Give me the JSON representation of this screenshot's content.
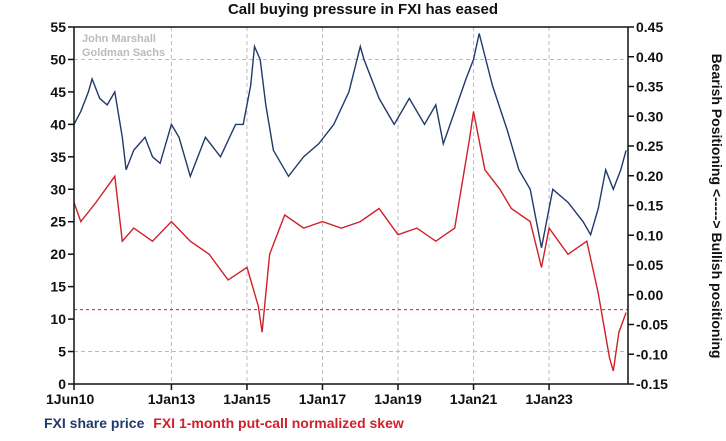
{
  "chart_data": {
    "type": "line",
    "title": "Call buying pressure in FXI has eased",
    "watermark": [
      "John Marshall",
      "Goldman Sachs"
    ],
    "left_axis": {
      "ylim": [
        0,
        55
      ],
      "ticks": [
        0,
        5,
        10,
        15,
        20,
        25,
        30,
        35,
        40,
        45,
        50,
        55
      ]
    },
    "right_axis": {
      "label": "Bearish Positioning <-----> Bullish positioning",
      "ylim": [
        -0.15,
        0.45
      ],
      "ticks": [
        "-0.15",
        "-0.10",
        "-0.05",
        "0.00",
        "0.05",
        "0.10",
        "0.15",
        "0.20",
        "0.25",
        "0.30",
        "0.35",
        "0.40",
        "0.45"
      ]
    },
    "x_axis": {
      "xlim": [
        2010.42,
        2025.09
      ],
      "ticks": [
        {
          "x": 2010.42,
          "label": "1Jun10"
        },
        {
          "x": 2013,
          "label": "1Jan13"
        },
        {
          "x": 2015,
          "label": "1Jan15"
        },
        {
          "x": 2017,
          "label": "1Jan17"
        },
        {
          "x": 2019,
          "label": "1Jan19"
        },
        {
          "x": 2021,
          "label": "1Jan21"
        },
        {
          "x": 2023,
          "label": "1Jan23"
        }
      ]
    },
    "reference_line": {
      "right_value": -0.025,
      "color": "#d0202a"
    },
    "series": [
      {
        "name": "FXI share price",
        "axis": "left",
        "color": "#1f3a6b",
        "x": [
          2010.42,
          2010.6,
          2010.8,
          2010.9,
          2011.1,
          2011.3,
          2011.5,
          2011.7,
          2011.8,
          2012.0,
          2012.3,
          2012.5,
          2012.7,
          2013.0,
          2013.2,
          2013.5,
          2013.9,
          2014.3,
          2014.7,
          2014.9,
          2015.1,
          2015.2,
          2015.35,
          2015.5,
          2015.7,
          2016.1,
          2016.5,
          2016.9,
          2017.3,
          2017.7,
          2018.0,
          2018.1,
          2018.5,
          2018.9,
          2019.3,
          2019.7,
          2020.0,
          2020.2,
          2020.5,
          2020.8,
          2021.0,
          2021.15,
          2021.5,
          2021.9,
          2022.2,
          2022.5,
          2022.8,
          2023.1,
          2023.5,
          2023.9,
          2024.1,
          2024.3,
          2024.5,
          2024.7,
          2024.9,
          2025.04
        ],
        "values": [
          40,
          42,
          45,
          47,
          44,
          43,
          45,
          38,
          33,
          36,
          38,
          35,
          34,
          40,
          38,
          32,
          38,
          35,
          40,
          40,
          46,
          52,
          50,
          43,
          36,
          32,
          35,
          37,
          40,
          45,
          52,
          50,
          44,
          40,
          44,
          40,
          43,
          37,
          42,
          47,
          50,
          54,
          46,
          39,
          33,
          30,
          21,
          30,
          28,
          25,
          23,
          27,
          33,
          30,
          33,
          36
        ]
      },
      {
        "name": "FXI 1-month put-call normalized skew",
        "axis": "right",
        "color": "#d0202a",
        "x": [
          2010.42,
          2010.6,
          2011.0,
          2011.5,
          2011.7,
          2012.0,
          2012.5,
          2013.0,
          2013.5,
          2014.0,
          2014.5,
          2015.0,
          2015.3,
          2015.4,
          2015.6,
          2016.0,
          2016.5,
          2017.0,
          2017.5,
          2018.0,
          2018.5,
          2019.0,
          2019.5,
          2020.0,
          2020.5,
          2020.9,
          2021.0,
          2021.3,
          2021.7,
          2022.0,
          2022.5,
          2022.8,
          2023.0,
          2023.5,
          2024.0,
          2024.3,
          2024.6,
          2024.7,
          2024.85,
          2025.04
        ],
        "values": [
          0.155,
          0.123,
          0.155,
          0.199,
          0.09,
          0.112,
          0.09,
          0.123,
          0.09,
          0.068,
          0.025,
          0.046,
          -0.019,
          -0.063,
          0.068,
          0.134,
          0.112,
          0.123,
          0.112,
          0.123,
          0.145,
          0.101,
          0.112,
          0.09,
          0.112,
          0.265,
          0.308,
          0.21,
          0.177,
          0.145,
          0.123,
          0.046,
          0.112,
          0.068,
          0.09,
          0.003,
          -0.106,
          -0.128,
          -0.063,
          -0.03
        ]
      }
    ],
    "legend": [
      "FXI share price",
      "FXI 1-month put-call normalized skew"
    ]
  }
}
